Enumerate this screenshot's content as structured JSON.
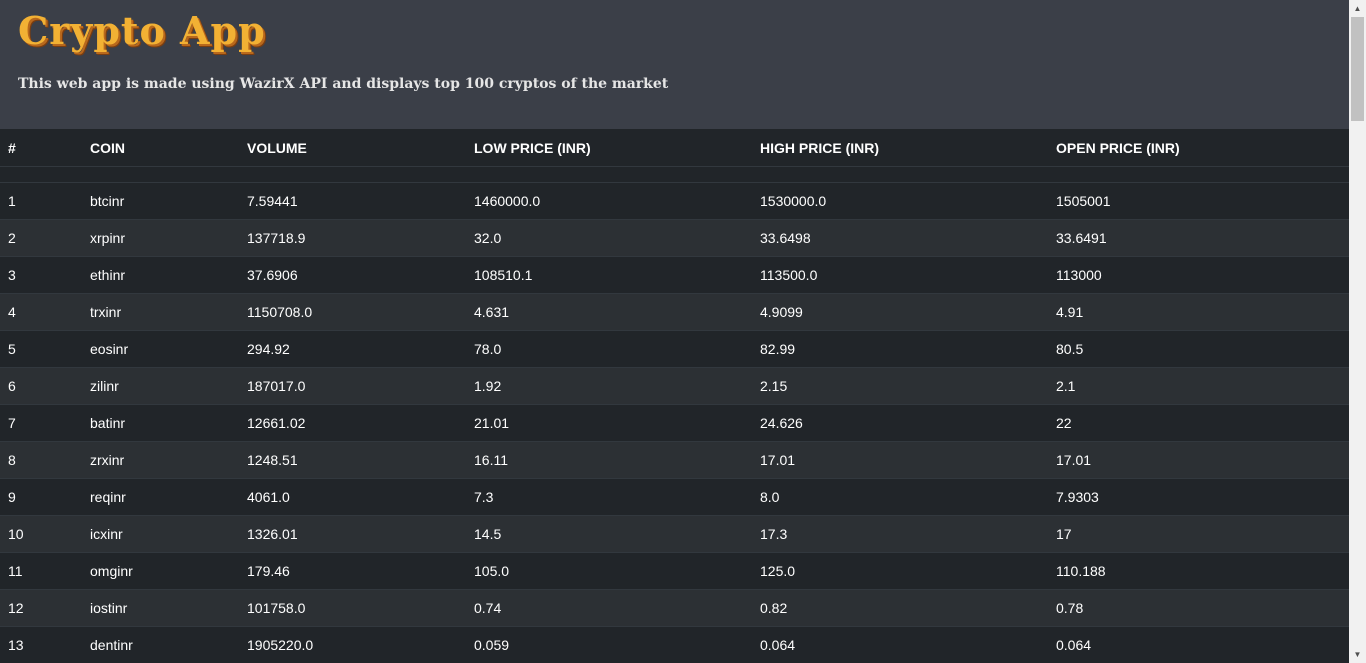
{
  "header": {
    "logo": "Crypto App",
    "tagline": "This web app is made using WazirX API and displays top 100 cryptos of the market"
  },
  "table": {
    "columns": [
      "#",
      "COIN",
      "VOLUME",
      "LOW PRICE (INR)",
      "HIGH PRICE (INR)",
      "OPEN PRICE (INR)"
    ],
    "rows": [
      [
        "1",
        "btcinr",
        "7.59441",
        "1460000.0",
        "1530000.0",
        "1505001"
      ],
      [
        "2",
        "xrpinr",
        "137718.9",
        "32.0",
        "33.6498",
        "33.6491"
      ],
      [
        "3",
        "ethinr",
        "37.6906",
        "108510.1",
        "113500.0",
        "113000"
      ],
      [
        "4",
        "trxinr",
        "1150708.0",
        "4.631",
        "4.9099",
        "4.91"
      ],
      [
        "5",
        "eosinr",
        "294.92",
        "78.0",
        "82.99",
        "80.5"
      ],
      [
        "6",
        "zilinr",
        "187017.0",
        "1.92",
        "2.15",
        "2.1"
      ],
      [
        "7",
        "batinr",
        "12661.02",
        "21.01",
        "24.626",
        "22"
      ],
      [
        "8",
        "zrxinr",
        "1248.51",
        "16.11",
        "17.01",
        "17.01"
      ],
      [
        "9",
        "reqinr",
        "4061.0",
        "7.3",
        "8.0",
        "7.9303"
      ],
      [
        "10",
        "icxinr",
        "1326.01",
        "14.5",
        "17.3",
        "17"
      ],
      [
        "11",
        "omginr",
        "179.46",
        "105.0",
        "125.0",
        "110.188"
      ],
      [
        "12",
        "iostinr",
        "101758.0",
        "0.74",
        "0.82",
        "0.78"
      ],
      [
        "13",
        "dentinr",
        "1905220.0",
        "0.059",
        "0.064",
        "0.064"
      ]
    ]
  },
  "icons": {
    "scroll_up": "arrow-up-icon",
    "scroll_down": "arrow-down-icon"
  }
}
